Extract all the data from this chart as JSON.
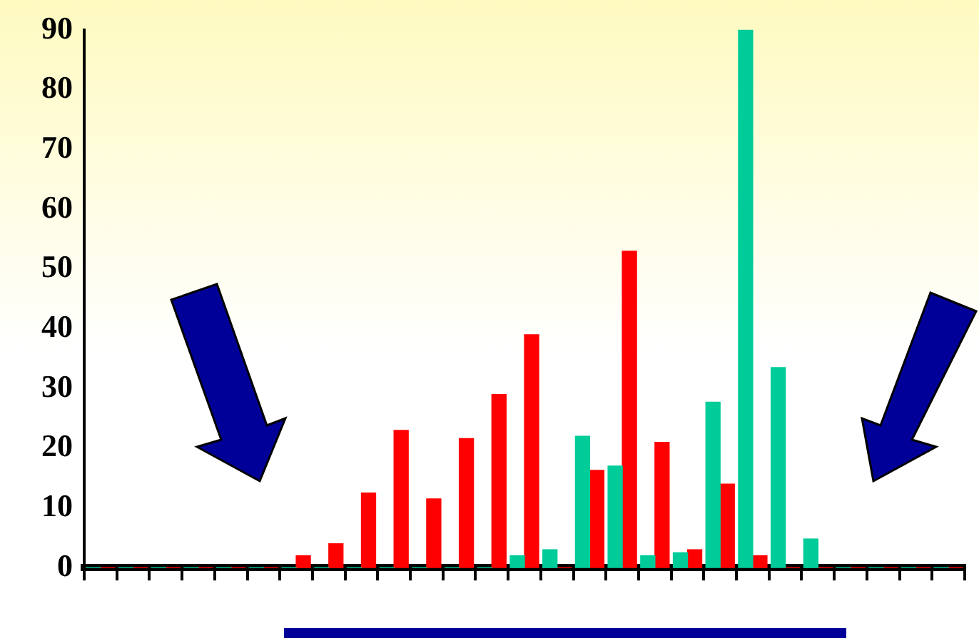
{
  "chart_data": {
    "type": "bar",
    "categories": [
      null,
      null,
      null,
      null,
      null,
      null,
      null,
      null,
      null,
      null,
      null,
      null,
      null,
      null,
      null,
      null,
      null,
      null,
      null,
      null,
      null,
      null,
      null,
      null,
      null,
      null,
      null
    ],
    "series": [
      {
        "color": "#00cc99",
        "values": [
          0,
          0,
          0,
          0,
          0,
          0,
          0,
          0,
          0,
          0,
          0,
          0,
          0,
          2,
          3,
          22,
          17,
          2,
          2.5,
          27.7,
          90,
          33.5,
          4.8,
          0,
          0,
          0,
          0
        ]
      },
      {
        "color": "#ff0000",
        "values": [
          0,
          0,
          0,
          0,
          0,
          0,
          2,
          4,
          12.5,
          23,
          11.5,
          21.6,
          29,
          39,
          0,
          16.3,
          53,
          21,
          3,
          14,
          2,
          0,
          0,
          0,
          0,
          0,
          0
        ]
      }
    ],
    "ylim": [
      0,
      90
    ],
    "yticks": [
      0,
      10,
      20,
      30,
      40,
      50,
      60,
      70,
      80,
      90
    ],
    "grid": false,
    "legend": false
  }
}
